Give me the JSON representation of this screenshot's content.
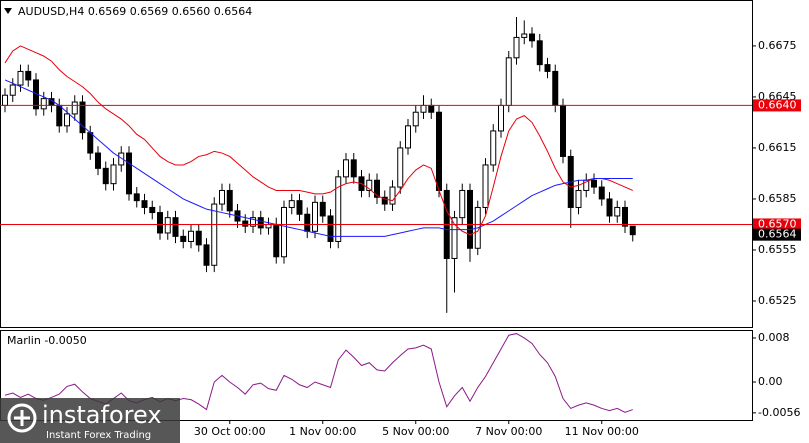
{
  "chart_data": [
    {
      "type": "candlestick",
      "title": "AUDUSD,H4  0.6569 0.6569 0.6560 0.6564",
      "categories": [
        null,
        null,
        null,
        null,
        null,
        null,
        null,
        null,
        null,
        null,
        null,
        null,
        null,
        null,
        null,
        null,
        null,
        null,
        null,
        null,
        null,
        null,
        null,
        null,
        null,
        null,
        null,
        null,
        null,
        "30 Oct 00:00",
        null,
        null,
        null,
        null,
        null,
        null,
        null,
        null,
        null,
        null,
        null,
        "1 Nov 00:00",
        null,
        null,
        null,
        null,
        null,
        null,
        null,
        null,
        null,
        null,
        null,
        "5 Nov 00:00",
        null,
        null,
        null,
        null,
        null,
        null,
        null,
        null,
        null,
        null,
        null,
        "7 Nov 00:00",
        null,
        null,
        null,
        null,
        null,
        null,
        null,
        null,
        null,
        null,
        null,
        "11 Nov 00:00",
        null,
        null,
        null,
        null
      ],
      "ohlc": [
        [
          0.664,
          0.665,
          0.6636,
          0.6646
        ],
        [
          0.6646,
          0.6656,
          0.6642,
          0.6652
        ],
        [
          0.6652,
          0.6664,
          0.6648,
          0.666
        ],
        [
          0.666,
          0.6664,
          0.6651,
          0.6655
        ],
        [
          0.6655,
          0.6659,
          0.6634,
          0.6638
        ],
        [
          0.6638,
          0.6648,
          0.6634,
          0.6644
        ],
        [
          0.6644,
          0.6648,
          0.6636,
          0.664
        ],
        [
          0.664,
          0.6644,
          0.6624,
          0.6628
        ],
        [
          0.6628,
          0.6639,
          0.6624,
          0.6635
        ],
        [
          0.6635,
          0.6646,
          0.6631,
          0.6642
        ],
        [
          0.6642,
          0.6646,
          0.662,
          0.6624
        ],
        [
          0.6624,
          0.6628,
          0.6608,
          0.6612
        ],
        [
          0.6612,
          0.6616,
          0.6599,
          0.6603
        ],
        [
          0.6603,
          0.6607,
          0.659,
          0.6594
        ],
        [
          0.6594,
          0.6609,
          0.659,
          0.6605
        ],
        [
          0.6605,
          0.6616,
          0.6601,
          0.6612
        ],
        [
          0.6612,
          0.6616,
          0.6584,
          0.6588
        ],
        [
          0.6588,
          0.6592,
          0.658,
          0.6584
        ],
        [
          0.6584,
          0.6588,
          0.6576,
          0.658
        ],
        [
          0.658,
          0.6584,
          0.6573,
          0.6577
        ],
        [
          0.6577,
          0.6581,
          0.6561,
          0.6565
        ],
        [
          0.6565,
          0.6578,
          0.6561,
          0.6574
        ],
        [
          0.6574,
          0.6578,
          0.6559,
          0.6563
        ],
        [
          0.6563,
          0.6567,
          0.6556,
          0.656
        ],
        [
          0.656,
          0.657,
          0.6556,
          0.6566
        ],
        [
          0.6566,
          0.657,
          0.6554,
          0.6558
        ],
        [
          0.6558,
          0.6562,
          0.6542,
          0.6546
        ],
        [
          0.6546,
          0.6586,
          0.6542,
          0.6582
        ],
        [
          0.6582,
          0.6594,
          0.6578,
          0.659
        ],
        [
          0.659,
          0.6594,
          0.6574,
          0.6578
        ],
        [
          0.6578,
          0.6582,
          0.6568,
          0.6572
        ],
        [
          0.6572,
          0.6576,
          0.6565,
          0.6569
        ],
        [
          0.6569,
          0.6578,
          0.6565,
          0.6574
        ],
        [
          0.6574,
          0.6578,
          0.6564,
          0.6568
        ],
        [
          0.6568,
          0.6574,
          0.6564,
          0.657
        ],
        [
          0.657,
          0.6574,
          0.6547,
          0.6551
        ],
        [
          0.6551,
          0.6584,
          0.6547,
          0.658
        ],
        [
          0.658,
          0.6588,
          0.6576,
          0.6584
        ],
        [
          0.6584,
          0.6588,
          0.6572,
          0.6576
        ],
        [
          0.6576,
          0.658,
          0.6562,
          0.6566
        ],
        [
          0.6566,
          0.6587,
          0.6562,
          0.6583
        ],
        [
          0.6583,
          0.6587,
          0.6571,
          0.6575
        ],
        [
          0.6575,
          0.6579,
          0.6556,
          0.656
        ],
        [
          0.656,
          0.6602,
          0.6556,
          0.6598
        ],
        [
          0.6598,
          0.6612,
          0.6594,
          0.6608
        ],
        [
          0.6608,
          0.6612,
          0.6594,
          0.6598
        ],
        [
          0.6598,
          0.6602,
          0.6586,
          0.659
        ],
        [
          0.659,
          0.66,
          0.6586,
          0.6596
        ],
        [
          0.6596,
          0.66,
          0.6582,
          0.6586
        ],
        [
          0.6586,
          0.659,
          0.6578,
          0.6582
        ],
        [
          0.6582,
          0.6596,
          0.6578,
          0.6592
        ],
        [
          0.6592,
          0.6619,
          0.6588,
          0.6615
        ],
        [
          0.6615,
          0.6632,
          0.6611,
          0.6628
        ],
        [
          0.6628,
          0.664,
          0.6624,
          0.6636
        ],
        [
          0.6636,
          0.6646,
          0.6632,
          0.664
        ],
        [
          0.664,
          0.6644,
          0.6632,
          0.6636
        ],
        [
          0.6636,
          0.664,
          0.6586,
          0.659
        ],
        [
          0.659,
          0.6594,
          0.6518,
          0.655
        ],
        [
          0.655,
          0.6578,
          0.653,
          0.6574
        ],
        [
          0.6574,
          0.6594,
          0.657,
          0.659
        ],
        [
          0.659,
          0.6594,
          0.6548,
          0.6556
        ],
        [
          0.6556,
          0.6584,
          0.6552,
          0.658
        ],
        [
          0.658,
          0.6609,
          0.6576,
          0.6605
        ],
        [
          0.6605,
          0.6629,
          0.6601,
          0.6625
        ],
        [
          0.6625,
          0.6644,
          0.6621,
          0.664
        ],
        [
          0.664,
          0.6672,
          0.6636,
          0.6668
        ],
        [
          0.6668,
          0.6692,
          0.6664,
          0.668
        ],
        [
          0.668,
          0.669,
          0.6676,
          0.6682
        ],
        [
          0.6682,
          0.6686,
          0.6674,
          0.6678
        ],
        [
          0.6678,
          0.6682,
          0.666,
          0.6664
        ],
        [
          0.6664,
          0.6668,
          0.6656,
          0.666
        ],
        [
          0.666,
          0.6664,
          0.6636,
          0.664
        ],
        [
          0.664,
          0.6644,
          0.6606,
          0.661
        ],
        [
          0.661,
          0.6614,
          0.6568,
          0.658
        ],
        [
          0.658,
          0.6596,
          0.6576,
          0.659
        ],
        [
          0.659,
          0.66,
          0.6586,
          0.6596
        ],
        [
          0.6596,
          0.66,
          0.6588,
          0.6592
        ],
        [
          0.6592,
          0.6596,
          0.6581,
          0.6585
        ],
        [
          0.6585,
          0.6589,
          0.6571,
          0.6575
        ],
        [
          0.6575,
          0.6584,
          0.6571,
          0.658
        ],
        [
          0.658,
          0.6584,
          0.6565,
          0.6569
        ],
        [
          0.6569,
          0.6569,
          0.656,
          0.6564
        ]
      ],
      "series": [
        {
          "color": "#e8000b",
          "values": [
            0.6665,
            0.6672,
            0.6675,
            0.6673,
            0.6671,
            0.6669,
            0.6666,
            0.6661,
            0.6657,
            0.6654,
            0.6651,
            0.6647,
            0.6642,
            0.6638,
            0.6635,
            0.6632,
            0.6628,
            0.6623,
            0.662,
            0.6615,
            0.661,
            0.6607,
            0.6605,
            0.6605,
            0.6607,
            0.661,
            0.6611,
            0.6613,
            0.6612,
            0.661,
            0.6606,
            0.6602,
            0.6598,
            0.6595,
            0.6592,
            0.659,
            0.659,
            0.659,
            0.659,
            0.6589,
            0.6588,
            0.6588,
            0.6589,
            0.6592,
            0.6594,
            0.6595,
            0.6594,
            0.6591,
            0.6587,
            0.6585,
            0.6584,
            0.659,
            0.6597,
            0.6602,
            0.6605,
            0.6603,
            0.659,
            0.6578,
            0.657,
            0.6566,
            0.6564,
            0.6566,
            0.6575,
            0.6592,
            0.661,
            0.6625,
            0.6632,
            0.6634,
            0.663,
            0.6622,
            0.6613,
            0.6603,
            0.6595,
            0.6592,
            0.6593,
            0.6595,
            0.6597,
            0.6597,
            0.6596,
            0.6594,
            0.6592,
            0.659
          ]
        },
        {
          "color": "#1a1aff",
          "values": [
            0.6655,
            0.6653,
            0.6651,
            0.6649,
            0.6647,
            0.6645,
            0.6643,
            0.664,
            0.6636,
            0.6632,
            0.6628,
            0.6624,
            0.662,
            0.6616,
            0.6612,
            0.6609,
            0.6606,
            0.6603,
            0.66,
            0.6597,
            0.6594,
            0.6591,
            0.6588,
            0.6585,
            0.6583,
            0.6581,
            0.6579,
            0.6578,
            0.6577,
            0.6576,
            0.6575,
            0.6574,
            0.6573,
            0.6572,
            0.6571,
            0.657,
            0.6569,
            0.6568,
            0.6567,
            0.6566,
            0.6565,
            0.6564,
            0.6563,
            0.6563,
            0.6563,
            0.6563,
            0.6563,
            0.6563,
            0.6563,
            0.6563,
            0.6564,
            0.6565,
            0.6566,
            0.6567,
            0.6568,
            0.6568,
            0.6568,
            0.6567,
            0.6567,
            0.6567,
            0.6567,
            0.6568,
            0.657,
            0.6572,
            0.6575,
            0.6578,
            0.6581,
            0.6584,
            0.6587,
            0.6589,
            0.6591,
            0.6593,
            0.6594,
            0.6595,
            0.6596,
            0.6596,
            0.6597,
            0.6597,
            0.6597,
            0.6597,
            0.6597,
            0.6597
          ]
        }
      ],
      "ylim": [
        0.65097,
        0.6702
      ],
      "yticks": [
        0.6675,
        0.6645,
        0.6615,
        0.6585,
        0.6555,
        0.6525
      ],
      "hlines": [
        {
          "value": 0.664,
          "label": "0.6640",
          "color": "#e8000b"
        },
        {
          "value": 0.657,
          "label": "0.6570",
          "color": "#e8000b"
        }
      ],
      "last_price": {
        "value": 0.6564,
        "label": "0.6564"
      }
    },
    {
      "type": "line",
      "title": "Marlin -0.0050",
      "series": [
        {
          "color": "#8b1a8b",
          "values": [
            -0.0024,
            -0.002,
            -0.0028,
            -0.0022,
            -0.003,
            -0.0033,
            -0.0028,
            -0.0022,
            -0.0008,
            -0.0004,
            -0.0018,
            -0.003,
            -0.0035,
            -0.004,
            -0.003,
            -0.002,
            -0.0034,
            -0.0038,
            -0.0032,
            -0.0028,
            -0.0036,
            -0.003,
            -0.0034,
            -0.003,
            -0.0032,
            -0.004,
            -0.005,
            0.0,
            0.0012,
            0.0,
            -0.001,
            -0.0022,
            -0.0005,
            -0.0002,
            -0.0012,
            -0.0015,
            0.0012,
            0.0005,
            -0.0005,
            -0.001,
            0.0,
            -0.0005,
            -0.001,
            0.004,
            0.0058,
            0.0045,
            0.003,
            0.0035,
            0.0022,
            0.002,
            0.0035,
            0.0048,
            0.006,
            0.0062,
            0.0067,
            0.006,
            0.0,
            -0.0045,
            -0.0025,
            -0.001,
            -0.0035,
            -0.001,
            0.001,
            0.0035,
            0.006,
            0.0085,
            0.0088,
            0.008,
            0.007,
            0.005,
            0.0035,
            0.001,
            -0.003,
            -0.0048,
            -0.0042,
            -0.0038,
            -0.0042,
            -0.0048,
            -0.0052,
            -0.0048,
            -0.0055,
            -0.005
          ]
        }
      ],
      "ylim": [
        -0.0069,
        0.00945
      ],
      "yticks": [
        0.008,
        {
          "value": 0,
          "label": "0.00"
        },
        -0.0056
      ]
    }
  ],
  "watermark": {
    "brand": "instaforex",
    "tagline": "Instant Forex Trading"
  }
}
